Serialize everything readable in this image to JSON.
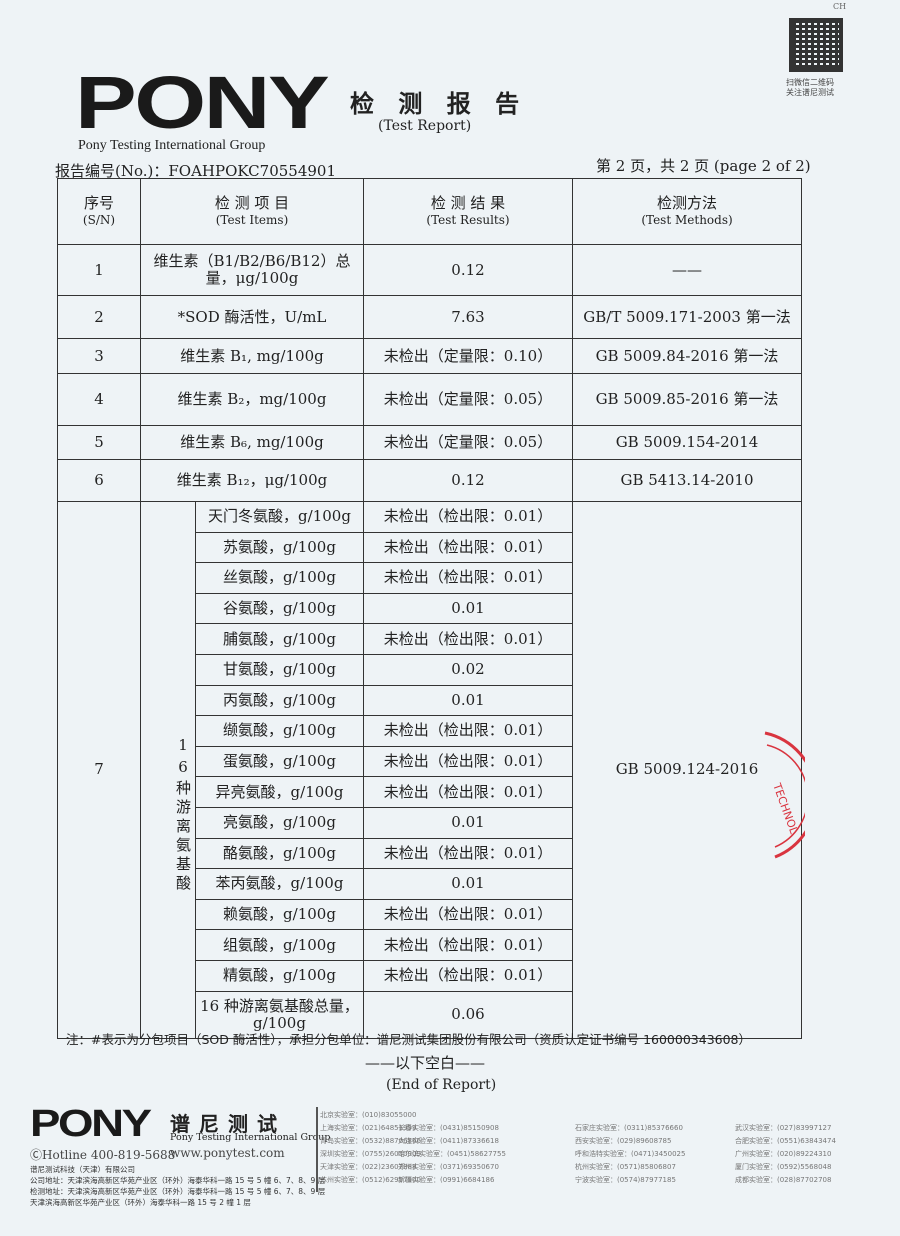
{
  "header": {
    "logo": "PONY",
    "group": "Pony Testing International Group",
    "title": "检 测 报 告",
    "title_en": "(Test Report)",
    "report_no": "报告编号(No.)：FOAHPOKC70554901",
    "page": "第 2 页，共 2 页 (page 2 of 2)",
    "qr_corner": "CH",
    "qr_text_1": "扫微信二维码",
    "qr_text_2": "关注谱尼测试"
  },
  "table": {
    "headers": {
      "sn": "序号",
      "sn_en": "(S/N)",
      "items": "检 测 项 目",
      "items_en": "(Test Items)",
      "results": "检 测 结 果",
      "results_en": "(Test Results)",
      "methods": "检测方法",
      "methods_en": "(Test Methods)"
    },
    "rows": [
      {
        "sn": "1",
        "item": "维生素（B1/B2/B6/B12）总量，μg/100g",
        "result": "0.12",
        "method": "——"
      },
      {
        "sn": "2",
        "item": "*SOD 酶活性，U/mL",
        "result": "7.63",
        "method": "GB/T 5009.171-2003 第一法"
      },
      {
        "sn": "3",
        "item": "维生素 B₁, mg/100g",
        "result": "未检出（定量限：0.10）",
        "method": "GB 5009.84-2016 第一法"
      },
      {
        "sn": "4",
        "item": "维生素 B₂，mg/100g",
        "result": "未检出（定量限：0.05）",
        "method": "GB 5009.85-2016 第一法"
      },
      {
        "sn": "5",
        "item": "维生素 B₆, mg/100g",
        "result": "未检出（定量限：0.05）",
        "method": "GB 5009.154-2014"
      },
      {
        "sn": "6",
        "item": "维生素 B₁₂，μg/100g",
        "result": "0.12",
        "method": "GB 5413.14-2010"
      }
    ],
    "group": {
      "sn": "7",
      "label": "16种游离氨基酸",
      "method": "GB 5009.124-2016",
      "items": [
        {
          "item": "天门冬氨酸，g/100g",
          "result": "未检出（检出限：0.01）"
        },
        {
          "item": "苏氨酸，g/100g",
          "result": "未检出（检出限：0.01）"
        },
        {
          "item": "丝氨酸，g/100g",
          "result": "未检出（检出限：0.01）"
        },
        {
          "item": "谷氨酸，g/100g",
          "result": "0.01"
        },
        {
          "item": "脯氨酸，g/100g",
          "result": "未检出（检出限：0.01）"
        },
        {
          "item": "甘氨酸，g/100g",
          "result": "0.02"
        },
        {
          "item": "丙氨酸，g/100g",
          "result": "0.01"
        },
        {
          "item": "缬氨酸，g/100g",
          "result": "未检出（检出限：0.01）"
        },
        {
          "item": "蛋氨酸，g/100g",
          "result": "未检出（检出限：0.01）"
        },
        {
          "item": "异亮氨酸，g/100g",
          "result": "未检出（检出限：0.01）"
        },
        {
          "item": "亮氨酸，g/100g",
          "result": "0.01"
        },
        {
          "item": "酪氨酸，g/100g",
          "result": "未检出（检出限：0.01）"
        },
        {
          "item": "苯丙氨酸，g/100g",
          "result": "0.01"
        },
        {
          "item": "赖氨酸，g/100g",
          "result": "未检出（检出限：0.01）"
        },
        {
          "item": "组氨酸，g/100g",
          "result": "未检出（检出限：0.01）"
        },
        {
          "item": "精氨酸，g/100g",
          "result": "未检出（检出限：0.01）"
        },
        {
          "item": "16 种游离氨基酸总量，g/100g",
          "result": "0.06"
        }
      ]
    }
  },
  "stamp_text": "TECHNOL",
  "stamp_color": "#d9343f",
  "note": "注：#表示为分包项目（SOD 酶活性），承担分包单位：谱尼测试集团股份有限公司（资质认定证书编号 160000343608）",
  "blank": "——以下空白——",
  "end": "(End of Report)",
  "footer": {
    "logo": "PONY",
    "cn": "谱尼测试",
    "en": "Pony Testing International Group",
    "hotline": "ⒸHotline 400-819-5688",
    "web": "www.ponytest.com",
    "company": "谱尼测试科技（天津）有限公司",
    "addr1": "公司地址：天津滨海高新区华苑产业区（环外）海泰华科一路 15 号 5 幢 6、7、8、9 层",
    "addr2": "检测地址：天津滨海高新区华苑产业区（环外）海泰华科一路 15 号 5 幢 6、7、8、9 层",
    "addr3": "天津滨海高新区华苑产业区（环外）海泰华科一路 15 号 2 幢 1 层",
    "labs": [
      [
        "北京实验室：(010)83055000",
        "上海实验室：(021)64851999",
        "青岛实验室：(0532)88706866",
        "深圳实验室：(0755)26050909",
        "天津实验室：(022)23607888",
        "苏州实验室：(0512)62997900"
      ],
      [
        "",
        "长春实验室：(0431)85150908",
        "大连实验室：(0411)87336618",
        "哈尔滨实验室：(0451)58627755",
        "郑州实验室：(0371)69350670",
        "新疆实验室：(0991)6684186"
      ],
      [
        "",
        "石家庄实验室：(0311)85376660",
        "西安实验室：(029)89608785",
        "呼和浩特实验室：(0471)3450025",
        "杭州实验室：(0571)85806807",
        "宁波实验室：(0574)87977185"
      ],
      [
        "",
        "武汉实验室：(027)83997127",
        "合肥实验室：(0551)63843474",
        "广州实验室：(020)89224310",
        "厦门实验室：(0592)5568048",
        "成都实验室：(028)87702708"
      ]
    ]
  }
}
